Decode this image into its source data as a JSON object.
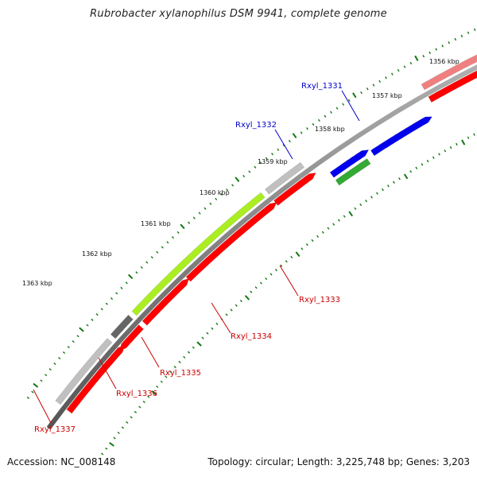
{
  "title": "Rubrobacter xylanophilus DSM 9941, complete genome",
  "footer": {
    "accession": "Accession: NC_008148",
    "summary": "Topology: circular; Length: 3,225,748 bp; Genes: 3,203"
  },
  "scale_labels": [
    "1356 kbp",
    "1357 kbp",
    "1358 kbp",
    "1359 kbp",
    "1360 kbp",
    "1361 kbp",
    "1362 kbp",
    "1363 kbp"
  ],
  "genes": [
    {
      "label": "Rxyl_1331",
      "color": "#0000cc"
    },
    {
      "label": "Rxyl_1332",
      "color": "#0000cc"
    },
    {
      "label": "Rxyl_1333",
      "color": "#cc0000"
    },
    {
      "label": "Rxyl_1334",
      "color": "#cc0000"
    },
    {
      "label": "Rxyl_1335",
      "color": "#cc0000"
    },
    {
      "label": "Rxyl_1336",
      "color": "#cc0000"
    },
    {
      "label": "Rxyl_1337",
      "color": "#cc0000"
    }
  ],
  "colors": {
    "backbone": "#888888",
    "cds_forward": "#ff0000",
    "cds_reverse": "#ff0000",
    "blast_hit_pink": "#f08080",
    "blast_hit_grey": "#c0c0c0",
    "blast_hit_dark": "#666666",
    "blast_hit_lime": "#aaee22",
    "blast_hit_green": "#33aa33",
    "blast_hit_blue": "#0000ee",
    "tick_color": "#117711"
  }
}
